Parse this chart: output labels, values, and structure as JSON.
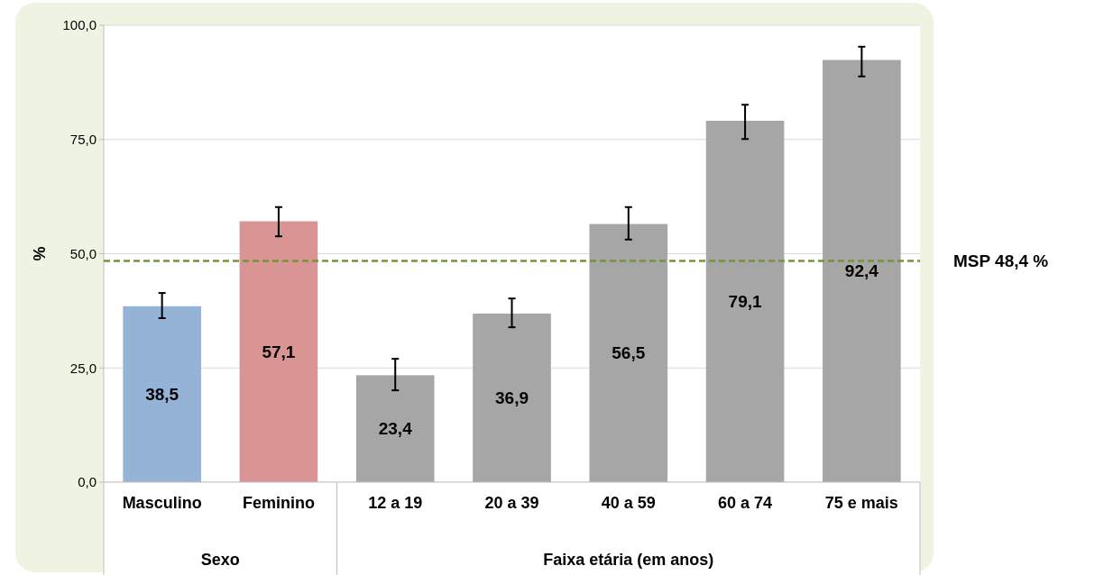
{
  "chart_data": {
    "type": "bar",
    "categories": [
      "Masculino",
      "Feminino",
      "12 a 19",
      "20 a 39",
      "40 a 59",
      "60 a 74",
      "75 e mais"
    ],
    "values": [
      38.5,
      57.1,
      23.4,
      36.9,
      56.5,
      79.1,
      92.4
    ],
    "colors": [
      "#95b3d7",
      "#d99594",
      "#a6a6a6",
      "#a6a6a6",
      "#a6a6a6",
      "#a6a6a6",
      "#a6a6a6"
    ],
    "errors": [
      [
        35.9,
        41.4
      ],
      [
        53.8,
        60.2
      ],
      [
        20.1,
        27.0
      ],
      [
        33.9,
        40.2
      ],
      [
        53.1,
        60.2
      ],
      [
        75.1,
        82.6
      ],
      [
        88.8,
        95.3
      ]
    ],
    "value_labels": [
      "38,5",
      "57,1",
      "23,4",
      "36,9",
      "56,5",
      "79,1",
      "92,4"
    ],
    "ylabel": "%",
    "ylim": [
      0,
      100
    ],
    "yticks": [
      {
        "value": 0,
        "label": "0,0"
      },
      {
        "value": 25,
        "label": "25,0"
      },
      {
        "value": 50,
        "label": "50,0"
      },
      {
        "value": 75,
        "label": "75,0"
      },
      {
        "value": 100,
        "label": "100,0"
      }
    ],
    "grid": "y",
    "ref_lines": [
      {
        "axis": "y",
        "value": 48.4,
        "label": "MSP 48,4 %",
        "color": "#77933c",
        "line_style": "dashed"
      }
    ],
    "annotations": [
      "Sexo",
      "Faixa etária (em anos)"
    ]
  }
}
